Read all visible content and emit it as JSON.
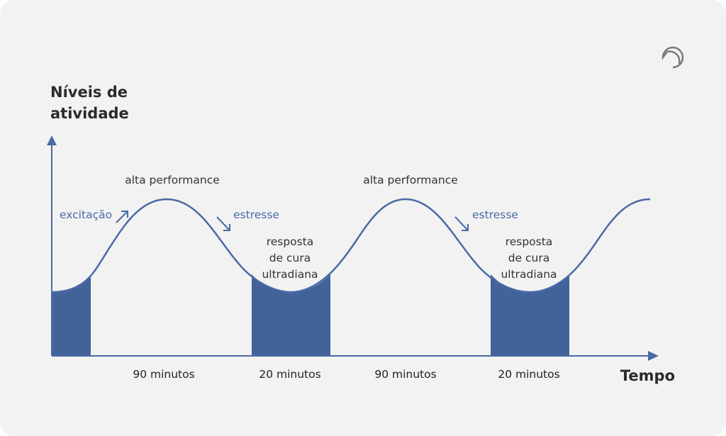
{
  "diagram": {
    "y_axis_label_line1": "Níveis de",
    "y_axis_label_line2": "atividade",
    "x_axis_label": "Tempo",
    "cycles": [
      {
        "peak_label": "alta performance",
        "rise_label": "excitação",
        "fall_label": "estresse",
        "trough_line1": "resposta",
        "trough_line2": "de cura",
        "trough_line3": "ultradiana",
        "duration_active": "90 minutos",
        "duration_rest": "20 minutos"
      },
      {
        "peak_label": "alta performance",
        "fall_label": "estresse",
        "trough_line1": "resposta",
        "trough_line2": "de cura",
        "trough_line3": "ultradiana",
        "duration_active": "90 minutos",
        "duration_rest": "20 minutos"
      }
    ],
    "colors": {
      "accent": "#4a6aa5",
      "fill": "#42639a",
      "background": "#f2f2f2",
      "text": "#333333"
    },
    "logo_icon": "circle-logo-icon"
  }
}
